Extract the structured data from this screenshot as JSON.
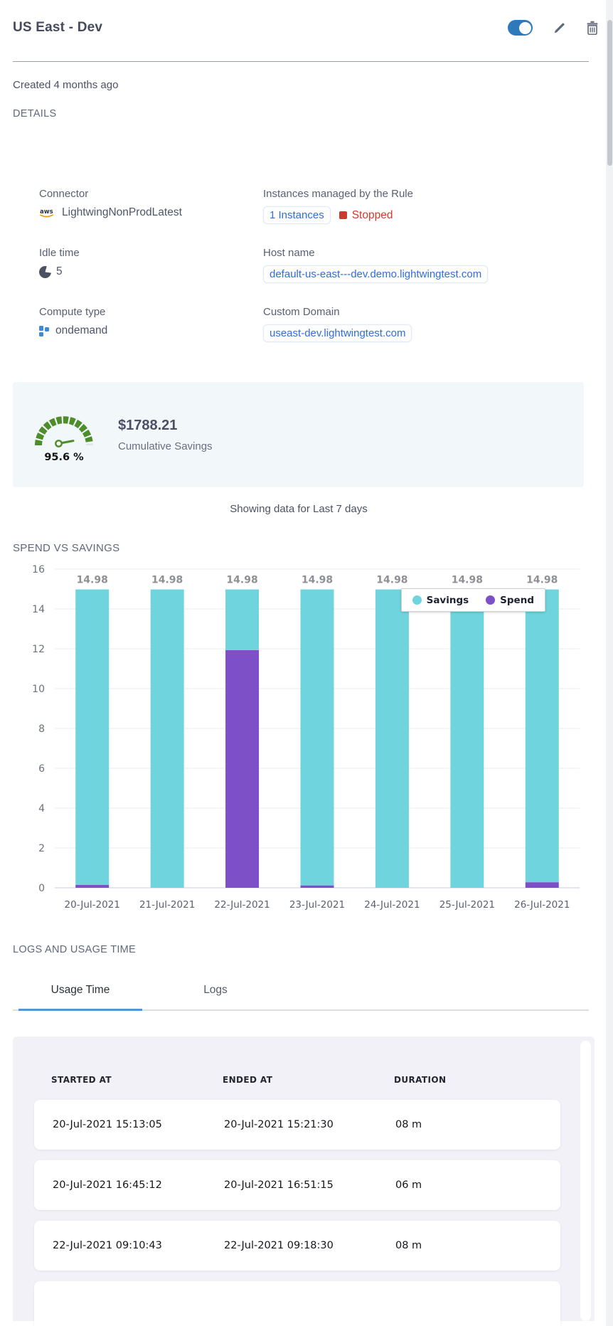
{
  "header": {
    "title": "US East - Dev"
  },
  "meta": {
    "created": "Created 4 months ago",
    "details_label": "DETAILS"
  },
  "details": {
    "connector": {
      "label": "Connector",
      "value": "LightwingNonProdLatest"
    },
    "instances": {
      "label": "Instances managed by the Rule",
      "link": "1 Instances",
      "status": "Stopped"
    },
    "idle_time": {
      "label": "Idle time",
      "value": "5"
    },
    "host_name": {
      "label": "Host name",
      "value": "default-us-east---dev.demo.lightwingtest.com"
    },
    "compute_type": {
      "label": "Compute type",
      "value": "ondemand"
    },
    "custom_domain": {
      "label": "Custom Domain",
      "value": "useast-dev.lightwingtest.com"
    }
  },
  "savings": {
    "percent": "95.6 %",
    "amount": "$1788.21",
    "caption": "Cumulative Savings"
  },
  "period_note": "Showing data for Last 7 days",
  "chart_section_label": "SPEND VS SAVINGS",
  "chart_data": {
    "type": "bar",
    "stacked": true,
    "title": "SPEND VS SAVINGS",
    "categories": [
      "20-Jul-2021",
      "21-Jul-2021",
      "22-Jul-2021",
      "23-Jul-2021",
      "24-Jul-2021",
      "25-Jul-2021",
      "26-Jul-2021"
    ],
    "series": [
      {
        "name": "Savings",
        "color": "#6fd4de",
        "values": [
          14.83,
          14.98,
          3.05,
          14.86,
          14.98,
          14.98,
          14.7
        ]
      },
      {
        "name": "Spend",
        "color": "#7d50c8",
        "values": [
          0.15,
          0,
          11.93,
          0.12,
          0,
          0,
          0.28
        ]
      }
    ],
    "bar_labels": [
      "14.98",
      "14.98",
      "14.98",
      "14.98",
      "14.98",
      "14.98",
      "14.98"
    ],
    "ylim": [
      0,
      16
    ],
    "ytick_step": 2,
    "grid": true,
    "legend_position": "top-right-overlay"
  },
  "logs_section_label": "LOGS AND USAGE TIME",
  "tabs": [
    {
      "label": "Usage Time",
      "active": true
    },
    {
      "label": "Logs",
      "active": false
    }
  ],
  "usage_table": {
    "columns": [
      "STARTED AT",
      "ENDED AT",
      "DURATION"
    ],
    "rows": [
      [
        "20-Jul-2021 15:13:05",
        "20-Jul-2021 15:21:30",
        "08 m"
      ],
      [
        "20-Jul-2021 16:45:12",
        "20-Jul-2021 16:51:15",
        "06 m"
      ],
      [
        "22-Jul-2021 09:10:43",
        "22-Jul-2021 09:18:30",
        "08 m"
      ]
    ]
  },
  "colors": {
    "link_blue": "#2e6ede",
    "toggle_blue": "#2e79bb",
    "status_red": "#cf3a2e",
    "savings_teal": "#6fd4de",
    "spend_purple": "#7d50c8",
    "gauge_green": "#4e8e2a",
    "tab_active_blue": "#4f97d9",
    "aws_orange": "#f79400",
    "compute_icon_blue": "#3d8ad8"
  }
}
